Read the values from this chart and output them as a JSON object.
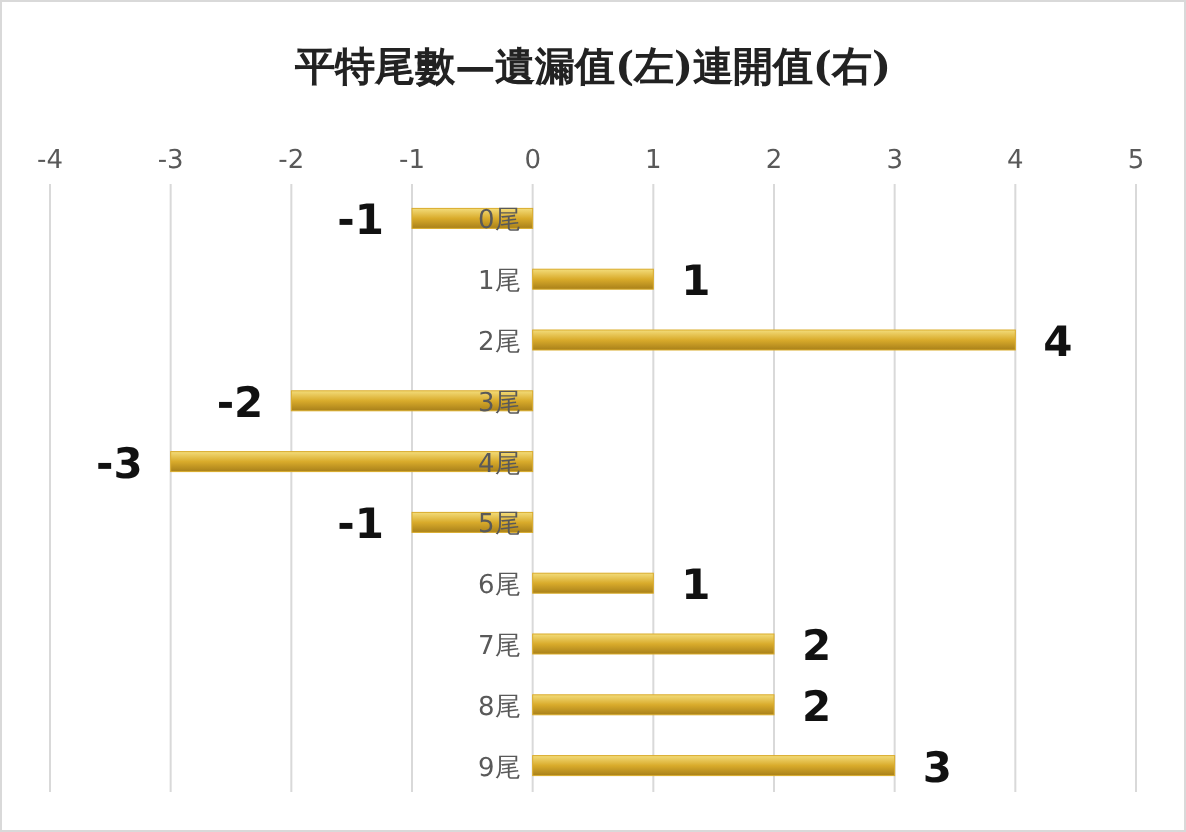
{
  "chart_data": {
    "type": "bar",
    "orientation": "horizontal",
    "title": "平特尾數—遺漏值(左)連開值(右)",
    "categories": [
      "0尾",
      "1尾",
      "2尾",
      "3尾",
      "4尾",
      "5尾",
      "6尾",
      "7尾",
      "8尾",
      "9尾"
    ],
    "values": [
      -1,
      1,
      4,
      -2,
      -3,
      -1,
      1,
      2,
      2,
      3
    ],
    "color": "#d9ab2b",
    "xlim": [
      -4,
      5
    ],
    "xticks": [
      -4,
      -3,
      -2,
      -1,
      0,
      1,
      2,
      3,
      4,
      5
    ],
    "grid": "x",
    "data_labels": true
  }
}
